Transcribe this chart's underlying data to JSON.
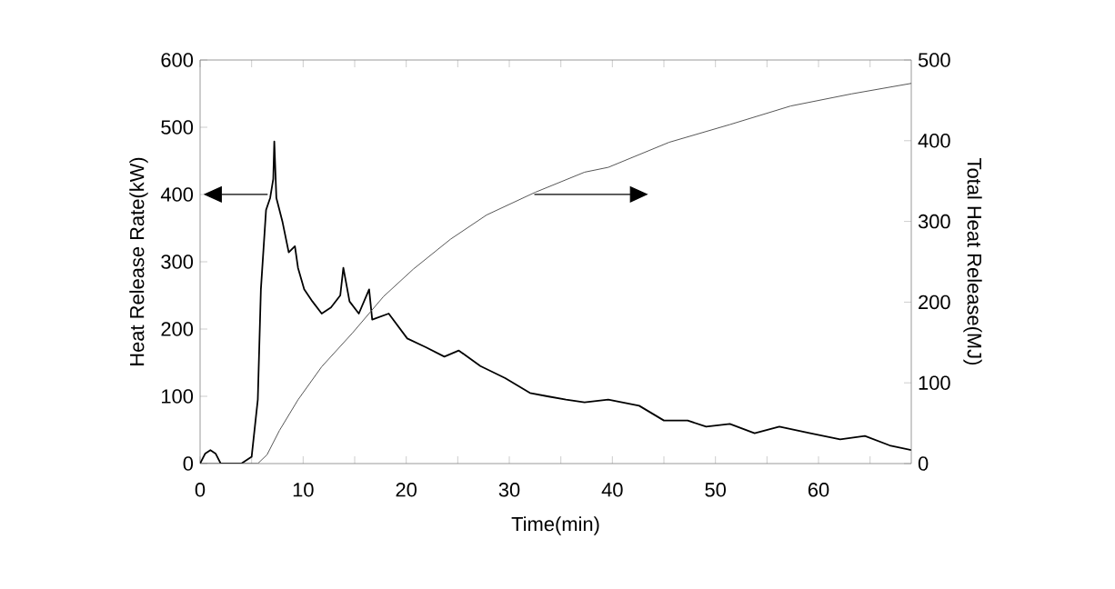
{
  "chart_data": {
    "type": "line",
    "xlabel": "Time(min)",
    "ylabel": "Heat Release Rate(kW)",
    "y2label": "Total Heat Release(MJ)",
    "xlim": [
      0,
      69
    ],
    "xticks": [
      0,
      {
        "value": 5,
        "label": null
      },
      10,
      {
        "value": 15,
        "label": null
      },
      20,
      {
        "value": 25,
        "label": null
      },
      30,
      {
        "value": 35,
        "label": null
      },
      40,
      {
        "value": 45,
        "label": null
      },
      50,
      {
        "value": 55,
        "label": null
      },
      60,
      {
        "value": 65,
        "label": null
      }
    ],
    "ylim": [
      0,
      600
    ],
    "yticks": [
      0,
      100,
      200,
      300,
      400,
      500,
      600
    ],
    "y2lim": [
      0,
      500
    ],
    "y2ticks": [
      0,
      100,
      200,
      300,
      400,
      500
    ],
    "grid": false,
    "marker": "none",
    "line_style": "solid",
    "series": [
      {
        "color": "#000000",
        "x": [
          0,
          0.5,
          1,
          1.5,
          2,
          4,
          4.5,
          5.0,
          5.6,
          5.9,
          6.4,
          6.8,
          7.1,
          7.2,
          7.4,
          8,
          8.6,
          9.2,
          9.5,
          10.1,
          10.9,
          11.8,
          12.7,
          13.6,
          13.9,
          14.5,
          15.4,
          16.4,
          16.7,
          18.3,
          20.1,
          21.9,
          23.7,
          25.1,
          27.2,
          29.6,
          32,
          33.7,
          35.5,
          37.3,
          39.6,
          42.6,
          45,
          47.3,
          49.1,
          51.4,
          53.8,
          56.2,
          59.2,
          62.1,
          64.5,
          66.9,
          69
        ],
        "values": [
          0,
          15,
          20,
          15,
          0,
          0,
          5,
          10,
          95,
          259,
          377,
          395,
          423,
          479,
          395,
          359,
          314,
          323,
          291,
          259,
          241,
          223,
          232,
          250,
          291,
          241,
          223,
          259,
          214,
          223,
          186,
          173,
          159,
          168,
          145,
          127,
          105,
          100,
          95,
          91,
          95,
          86,
          64,
          64,
          55,
          59,
          45,
          55,
          45,
          36,
          41,
          27,
          20
        ]
      },
      {
        "color": "#555555",
        "axis": "y2",
        "x": [
          0,
          5.6,
          6.5,
          7.7,
          9.5,
          11.8,
          14.8,
          17.8,
          20.7,
          24.3,
          27.8,
          32.5,
          37.3,
          39.6,
          45.5,
          51.4,
          57.3,
          63.2,
          69
        ],
        "values": [
          0,
          0,
          11,
          41,
          79,
          120,
          162,
          207,
          241,
          278,
          308,
          336,
          361,
          367,
          398,
          420,
          443,
          458,
          471
        ]
      }
    ]
  }
}
